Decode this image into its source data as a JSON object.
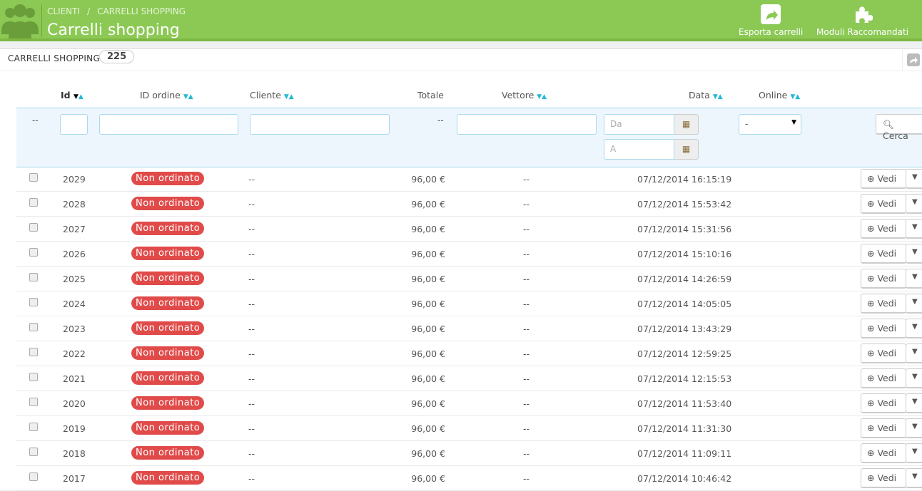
{
  "header": {
    "breadcrumb": [
      "CLIENTI",
      "/",
      "CARRELLI SHOPPING"
    ],
    "title": "Carrelli shopping",
    "toolbar": [
      {
        "label": "Esporta carrelli",
        "icon": "export-icon"
      },
      {
        "label": "Moduli Raccomandati",
        "icon": "puzzle-icon"
      }
    ],
    "color": "#8bc954"
  },
  "panel": {
    "title": "CARRELLI SHOPPING",
    "count": "225"
  },
  "columns": {
    "id": "Id",
    "order": "ID ordine",
    "customer": "Cliente",
    "total": "Totale",
    "carrier": "Vettore",
    "date": "Data",
    "online": "Online"
  },
  "filters": {
    "checkbox": "--",
    "total": "--",
    "date_from": "Da",
    "date_to": "A",
    "online": "-",
    "search": "Cerca"
  },
  "row_action": "Vedi",
  "rows": [
    {
      "id": "2029",
      "status": "Non ordinato",
      "customer": "--",
      "total": "96,00 €",
      "carrier": "--",
      "date": "07/12/2014 16:15:19"
    },
    {
      "id": "2028",
      "status": "Non ordinato",
      "customer": "--",
      "total": "96,00 €",
      "carrier": "--",
      "date": "07/12/2014 15:53:42"
    },
    {
      "id": "2027",
      "status": "Non ordinato",
      "customer": "--",
      "total": "96,00 €",
      "carrier": "--",
      "date": "07/12/2014 15:31:56"
    },
    {
      "id": "2026",
      "status": "Non ordinato",
      "customer": "--",
      "total": "96,00 €",
      "carrier": "--",
      "date": "07/12/2014 15:10:16"
    },
    {
      "id": "2025",
      "status": "Non ordinato",
      "customer": "--",
      "total": "96,00 €",
      "carrier": "--",
      "date": "07/12/2014 14:26:59"
    },
    {
      "id": "2024",
      "status": "Non ordinato",
      "customer": "--",
      "total": "96,00 €",
      "carrier": "--",
      "date": "07/12/2014 14:05:05"
    },
    {
      "id": "2023",
      "status": "Non ordinato",
      "customer": "--",
      "total": "96,00 €",
      "carrier": "--",
      "date": "07/12/2014 13:43:29"
    },
    {
      "id": "2022",
      "status": "Non ordinato",
      "customer": "--",
      "total": "96,00 €",
      "carrier": "--",
      "date": "07/12/2014 12:59:25"
    },
    {
      "id": "2021",
      "status": "Non ordinato",
      "customer": "--",
      "total": "96,00 €",
      "carrier": "--",
      "date": "07/12/2014 12:15:53"
    },
    {
      "id": "2020",
      "status": "Non ordinato",
      "customer": "--",
      "total": "96,00 €",
      "carrier": "--",
      "date": "07/12/2014 11:53:40"
    },
    {
      "id": "2019",
      "status": "Non ordinato",
      "customer": "--",
      "total": "96,00 €",
      "carrier": "--",
      "date": "07/12/2014 11:31:30"
    },
    {
      "id": "2018",
      "status": "Non ordinato",
      "customer": "--",
      "total": "96,00 €",
      "carrier": "--",
      "date": "07/12/2014 11:09:11"
    },
    {
      "id": "2017",
      "status": "Non ordinato",
      "customer": "--",
      "total": "96,00 €",
      "carrier": "--",
      "date": "07/12/2014 10:46:42"
    }
  ]
}
